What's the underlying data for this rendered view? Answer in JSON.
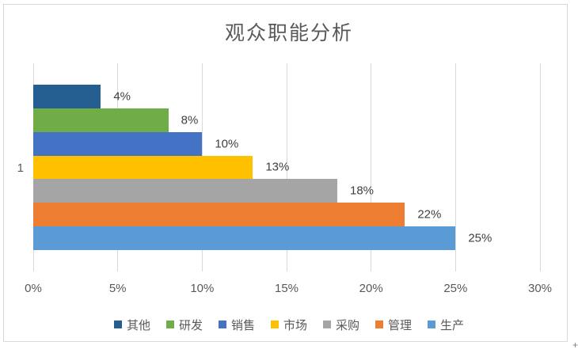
{
  "chart_data": {
    "type": "bar",
    "orientation": "horizontal",
    "title": "观众职能分析",
    "category_label": "1",
    "series": [
      {
        "name": "其他",
        "value": 4,
        "label": "4%",
        "color": "#255E91"
      },
      {
        "name": "研发",
        "value": 8,
        "label": "8%",
        "color": "#70AD47"
      },
      {
        "name": "销售",
        "value": 10,
        "label": "10%",
        "color": "#4472C4"
      },
      {
        "name": "市场",
        "value": 13,
        "label": "13%",
        "color": "#FFC000"
      },
      {
        "name": "采购",
        "value": 18,
        "label": "18%",
        "color": "#A5A5A5"
      },
      {
        "name": "管理",
        "value": 22,
        "label": "22%",
        "color": "#ED7D31"
      },
      {
        "name": "生产",
        "value": 25,
        "label": "25%",
        "color": "#5B9BD5"
      }
    ],
    "x_axis": {
      "min": 0,
      "max": 30,
      "tick_labels": [
        "0%",
        "5%",
        "10%",
        "15%",
        "20%",
        "25%",
        "30%"
      ]
    },
    "grid": true,
    "legend_position": "bottom"
  },
  "colors": {
    "frame_border": "#D9D9D9",
    "gridline": "#D9D9D9",
    "title_text": "#595959",
    "axis_text": "#595959",
    "data_label_text": "#404040",
    "legend_text": "#595959",
    "background": "#FFFFFF"
  },
  "cursor": {
    "glyph": "+"
  }
}
